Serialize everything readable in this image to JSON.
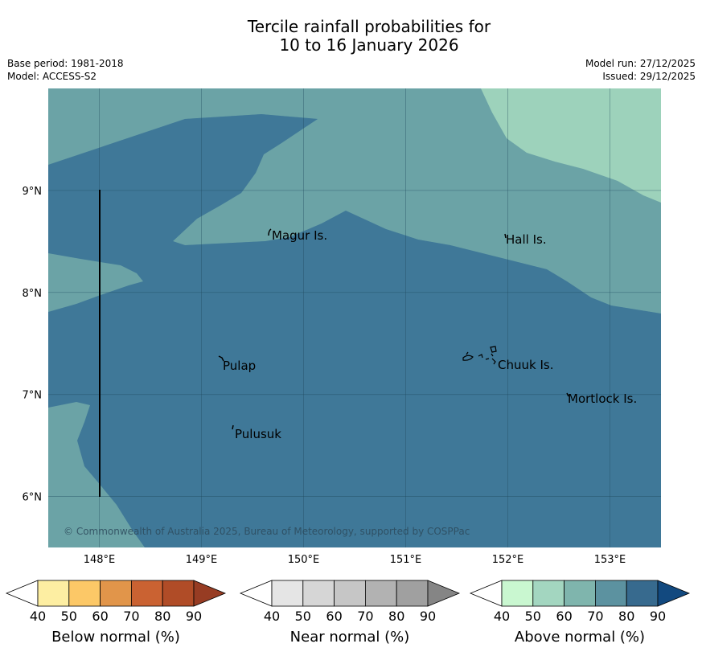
{
  "header": {
    "title_line1": "Tercile rainfall probabilities for",
    "title_line2": "10 to 16 January 2026",
    "base_period": "Base period: 1981-2018",
    "model": "Model: ACCESS-S2",
    "model_run": "Model run: 27/12/2025",
    "issued": "Issued: 29/12/2025"
  },
  "map": {
    "lon_range": [
      147.5,
      153.5
    ],
    "lat_range": [
      5.5,
      10.0
    ],
    "x_ticks": [
      "148°E",
      "149°E",
      "150°E",
      "151°E",
      "152°E",
      "153°E"
    ],
    "y_ticks": [
      "6°N",
      "7°N",
      "8°N",
      "9°N"
    ],
    "grid": true,
    "colors": {
      "above_60_70": "#6ba3a6",
      "above_70_80": "#5990a0",
      "above_80_90": "#3f7898",
      "above_50_60": "#9dd2bb"
    },
    "places": [
      {
        "name": "Magur Is.",
        "lon": 149.68,
        "lat": 8.56
      },
      {
        "name": "Hall Is.",
        "lon": 151.98,
        "lat": 8.52
      },
      {
        "name": "Pulap",
        "lon": 149.18,
        "lat": 7.3
      },
      {
        "name": "Chuuk Is.",
        "lon": 151.85,
        "lat": 7.3
      },
      {
        "name": "Mortlock Is.",
        "lon": 152.58,
        "lat": 6.97
      },
      {
        "name": "Pulusuk",
        "lon": 149.3,
        "lat": 6.65
      }
    ],
    "copyright": "© Commonwealth of Australia 2025, Bureau of Meteorology, supported by COSPPac"
  },
  "legend": [
    {
      "title": "Below normal (%)",
      "ticks": [
        "40",
        "50",
        "60",
        "70",
        "80",
        "90"
      ],
      "under": "#ffffff",
      "colors": [
        "#fdeea2",
        "#fcc867",
        "#e1954a",
        "#ca6232",
        "#b04c27"
      ],
      "over": "#973c23"
    },
    {
      "title": "Near normal (%)",
      "ticks": [
        "40",
        "50",
        "60",
        "70",
        "80",
        "90"
      ],
      "under": "#ffffff",
      "colors": [
        "#e5e5e5",
        "#d6d6d6",
        "#c6c6c6",
        "#b2b2b2",
        "#a0a0a0"
      ],
      "over": "#858585"
    },
    {
      "title": "Above normal (%)",
      "ticks": [
        "40",
        "50",
        "60",
        "70",
        "80",
        "90"
      ],
      "under": "#ffffff",
      "colors": [
        "#c9f7d0",
        "#a3d6c0",
        "#7fb5ad",
        "#5c92a0",
        "#376a8e"
      ],
      "over": "#12497f"
    }
  ]
}
